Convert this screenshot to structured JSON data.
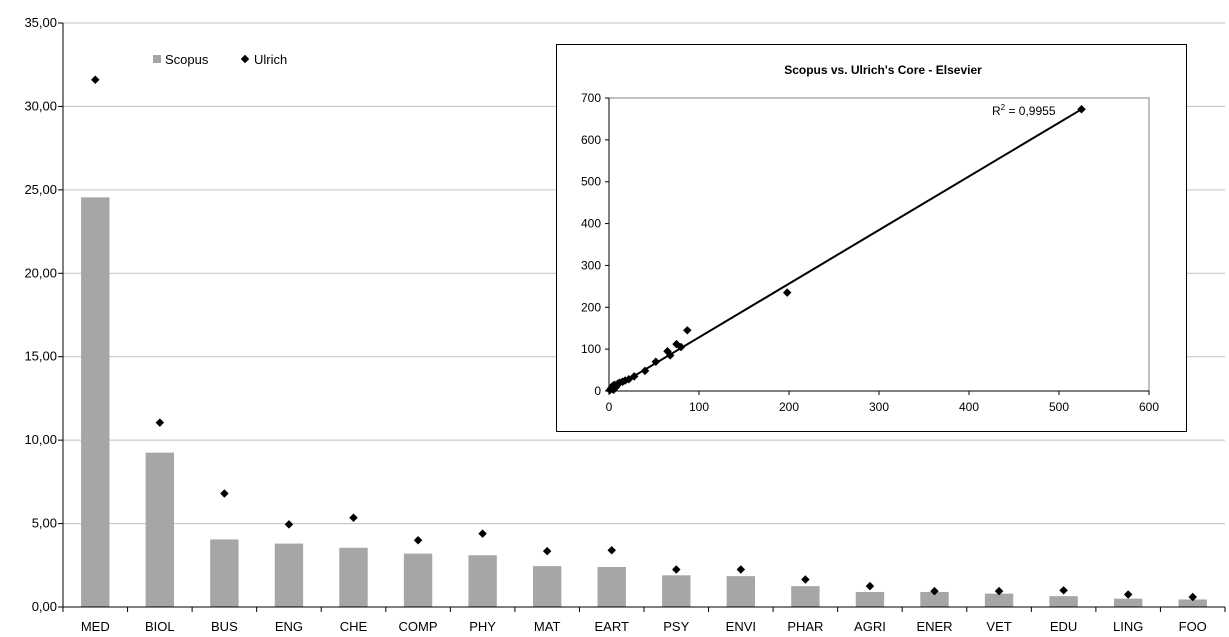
{
  "colors": {
    "bar": "#a6a6a6",
    "marker": "#000000",
    "grid": "#c0c0c0",
    "axis": "#000000"
  },
  "chart_data": [
    {
      "type": "bar",
      "title": "",
      "xlabel": "",
      "ylabel": "",
      "ylim": [
        0,
        35
      ],
      "ytick_step": 5,
      "ytick_labels": [
        "0,00",
        "5,00",
        "10,00",
        "15,00",
        "20,00",
        "25,00",
        "30,00",
        "35,00"
      ],
      "grid": true,
      "legend": {
        "placement": "top-left",
        "entries": [
          "Scopus",
          "Ulrich"
        ]
      },
      "categories": [
        "MED",
        "BIOL",
        "BUS",
        "ENG",
        "CHE",
        "COMP",
        "PHY",
        "MAT",
        "EART",
        "PSY",
        "ENVI",
        "PHAR",
        "AGRI",
        "ENER",
        "VET",
        "EDU",
        "LING",
        "FOO"
      ],
      "series": [
        {
          "name": "Scopus",
          "kind": "bar",
          "values": [
            24.55,
            9.25,
            4.05,
            3.8,
            3.55,
            3.2,
            3.1,
            2.45,
            2.4,
            1.9,
            1.85,
            1.25,
            0.9,
            0.9,
            0.8,
            0.65,
            0.5,
            0.45
          ]
        },
        {
          "name": "Ulrich",
          "kind": "marker",
          "values": [
            31.6,
            11.05,
            6.8,
            4.95,
            5.35,
            4.0,
            4.4,
            3.35,
            3.4,
            2.25,
            2.25,
            1.65,
            1.25,
            0.95,
            0.95,
            1.0,
            0.75,
            0.6
          ]
        }
      ]
    },
    {
      "type": "scatter",
      "title": "Scopus vs. Ulrich's Core - Elsevier",
      "xlabel": "",
      "ylabel": "",
      "xlim": [
        0,
        600
      ],
      "ylim": [
        0,
        700
      ],
      "xticks": [
        0,
        100,
        200,
        300,
        400,
        500,
        600
      ],
      "yticks": [
        0,
        100,
        200,
        300,
        400,
        500,
        600,
        700
      ],
      "grid": false,
      "points": [
        [
          1,
          2
        ],
        [
          2,
          5
        ],
        [
          3,
          8
        ],
        [
          4,
          12
        ],
        [
          5,
          3
        ],
        [
          6,
          15
        ],
        [
          8,
          10
        ],
        [
          10,
          18
        ],
        [
          12,
          20
        ],
        [
          15,
          22
        ],
        [
          18,
          25
        ],
        [
          22,
          28
        ],
        [
          28,
          35
        ],
        [
          40,
          48
        ],
        [
          52,
          70
        ],
        [
          65,
          95
        ],
        [
          68,
          85
        ],
        [
          75,
          112
        ],
        [
          80,
          105
        ],
        [
          87,
          145
        ],
        [
          198,
          235
        ],
        [
          525,
          673
        ]
      ],
      "trendline": {
        "from": [
          0,
          0
        ],
        "to": [
          525,
          673
        ],
        "label": "R² = 0,9955",
        "label_base": "R",
        "label_sup": "2",
        "label_rest": " = 0,9955"
      }
    }
  ]
}
